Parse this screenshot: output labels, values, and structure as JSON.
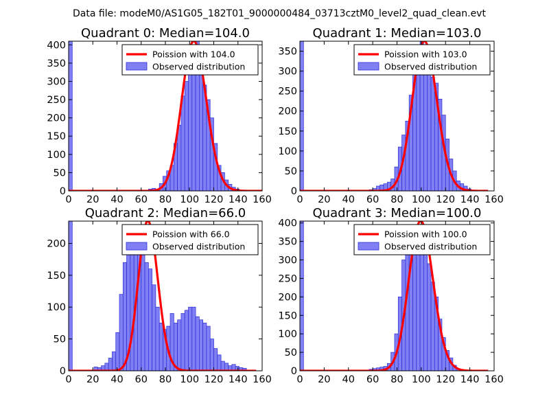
{
  "figure_title": "Data file: modeM0/AS1G05_182T01_9000000484_03713cztM0_level2_quad_clean.evt",
  "colors": {
    "bar_fill": "#8080f4",
    "bar_stroke": "#2b2bd6",
    "curve": "#ff0000",
    "axes": "#000000"
  },
  "chart_data": [
    {
      "type": "bar",
      "title": "Quadrant 0: Median=104.0",
      "xlim": [
        0,
        160
      ],
      "ylim": [
        0,
        410
      ],
      "xticks": [
        0,
        20,
        40,
        60,
        80,
        100,
        120,
        140,
        160
      ],
      "yticks": [
        0,
        50,
        100,
        150,
        200,
        250,
        300,
        350,
        400
      ],
      "bin_width": 3,
      "bins": [
        [
          0,
          410
        ],
        [
          66,
          5
        ],
        [
          69,
          7
        ],
        [
          72,
          4
        ],
        [
          75,
          20
        ],
        [
          78,
          40
        ],
        [
          81,
          55
        ],
        [
          84,
          70
        ],
        [
          87,
          130
        ],
        [
          90,
          180
        ],
        [
          93,
          260
        ],
        [
          96,
          300
        ],
        [
          99,
          340
        ],
        [
          102,
          375
        ],
        [
          105,
          410
        ],
        [
          108,
          355
        ],
        [
          111,
          290
        ],
        [
          114,
          250
        ],
        [
          117,
          200
        ],
        [
          120,
          130
        ],
        [
          123,
          70
        ],
        [
          126,
          50
        ],
        [
          129,
          30
        ],
        [
          132,
          18
        ],
        [
          135,
          10
        ],
        [
          138,
          5
        ]
      ],
      "curve_lambda": 104,
      "curve_range": [
        0,
        160
      ],
      "legend": [
        "Poission with 104.0",
        "Observed distribution"
      ]
    },
    {
      "type": "bar",
      "title": "Quadrant 1: Median=103.0",
      "xlim": [
        0,
        160
      ],
      "ylim": [
        0,
        375
      ],
      "xticks": [
        0,
        20,
        40,
        60,
        80,
        100,
        120,
        140,
        160
      ],
      "yticks": [
        0,
        50,
        100,
        150,
        200,
        250,
        300,
        350
      ],
      "bin_width": 3,
      "bins": [
        [
          0,
          375
        ],
        [
          57,
          3
        ],
        [
          60,
          6
        ],
        [
          63,
          12
        ],
        [
          66,
          15
        ],
        [
          69,
          18
        ],
        [
          72,
          22
        ],
        [
          75,
          30
        ],
        [
          78,
          60
        ],
        [
          81,
          110
        ],
        [
          84,
          140
        ],
        [
          87,
          175
        ],
        [
          90,
          240
        ],
        [
          93,
          300
        ],
        [
          96,
          340
        ],
        [
          99,
          375
        ],
        [
          102,
          355
        ],
        [
          105,
          320
        ],
        [
          108,
          285
        ],
        [
          111,
          270
        ],
        [
          114,
          230
        ],
        [
          117,
          190
        ],
        [
          120,
          130
        ],
        [
          123,
          80
        ],
        [
          126,
          50
        ],
        [
          129,
          25
        ],
        [
          132,
          18
        ],
        [
          135,
          12
        ],
        [
          138,
          5
        ]
      ],
      "curve_lambda": 103,
      "curve_range": [
        0,
        155
      ],
      "legend": [
        "Poission with 103.0",
        "Observed distribution"
      ]
    },
    {
      "type": "bar",
      "title": "Quadrant 2: Median=66.0",
      "xlim": [
        0,
        160
      ],
      "ylim": [
        0,
        235
      ],
      "xticks": [
        0,
        20,
        40,
        60,
        80,
        100,
        120,
        140,
        160
      ],
      "yticks": [
        0,
        50,
        100,
        150,
        200
      ],
      "bin_width": 3,
      "bins": [
        [
          0,
          235
        ],
        [
          21,
          6
        ],
        [
          24,
          5
        ],
        [
          27,
          8
        ],
        [
          30,
          12
        ],
        [
          33,
          20
        ],
        [
          36,
          30
        ],
        [
          39,
          60
        ],
        [
          42,
          120
        ],
        [
          45,
          170
        ],
        [
          48,
          210
        ],
        [
          51,
          200
        ],
        [
          54,
          205
        ],
        [
          57,
          185
        ],
        [
          60,
          195
        ],
        [
          63,
          170
        ],
        [
          66,
          160
        ],
        [
          69,
          135
        ],
        [
          72,
          100
        ],
        [
          75,
          75
        ],
        [
          78,
          65
        ],
        [
          81,
          70
        ],
        [
          84,
          90
        ],
        [
          87,
          75
        ],
        [
          90,
          80
        ],
        [
          93,
          90
        ],
        [
          96,
          95
        ],
        [
          99,
          100
        ],
        [
          102,
          100
        ],
        [
          105,
          85
        ],
        [
          108,
          80
        ],
        [
          111,
          75
        ],
        [
          114,
          70
        ],
        [
          117,
          50
        ],
        [
          120,
          35
        ],
        [
          123,
          25
        ],
        [
          126,
          15
        ],
        [
          129,
          12
        ],
        [
          132,
          8
        ],
        [
          135,
          10
        ],
        [
          138,
          7
        ],
        [
          141,
          5
        ],
        [
          144,
          4
        ]
      ],
      "curve_lambda": 66,
      "curve_range": [
        0,
        155
      ],
      "legend": [
        "Poission with 66.0",
        "Observed distribution"
      ]
    },
    {
      "type": "bar",
      "title": "Quadrant 3: Median=100.0",
      "xlim": [
        0,
        160
      ],
      "ylim": [
        0,
        405
      ],
      "xticks": [
        0,
        20,
        40,
        60,
        80,
        100,
        120,
        140,
        160
      ],
      "yticks": [
        0,
        50,
        100,
        150,
        200,
        250,
        300,
        350,
        400
      ],
      "bin_width": 3,
      "bins": [
        [
          0,
          405
        ],
        [
          57,
          4
        ],
        [
          60,
          6
        ],
        [
          63,
          8
        ],
        [
          66,
          10
        ],
        [
          69,
          12
        ],
        [
          72,
          20
        ],
        [
          75,
          50
        ],
        [
          78,
          100
        ],
        [
          81,
          200
        ],
        [
          84,
          300
        ],
        [
          87,
          340
        ],
        [
          90,
          380
        ],
        [
          93,
          390
        ],
        [
          96,
          360
        ],
        [
          99,
          370
        ],
        [
          102,
          320
        ],
        [
          105,
          290
        ],
        [
          108,
          240
        ],
        [
          111,
          200
        ],
        [
          114,
          140
        ],
        [
          117,
          90
        ],
        [
          120,
          55
        ],
        [
          123,
          35
        ],
        [
          126,
          15
        ],
        [
          129,
          6
        ]
      ],
      "curve_lambda": 100,
      "curve_range": [
        0,
        155
      ],
      "legend": [
        "Poission with 100.0",
        "Observed distribution"
      ]
    }
  ]
}
